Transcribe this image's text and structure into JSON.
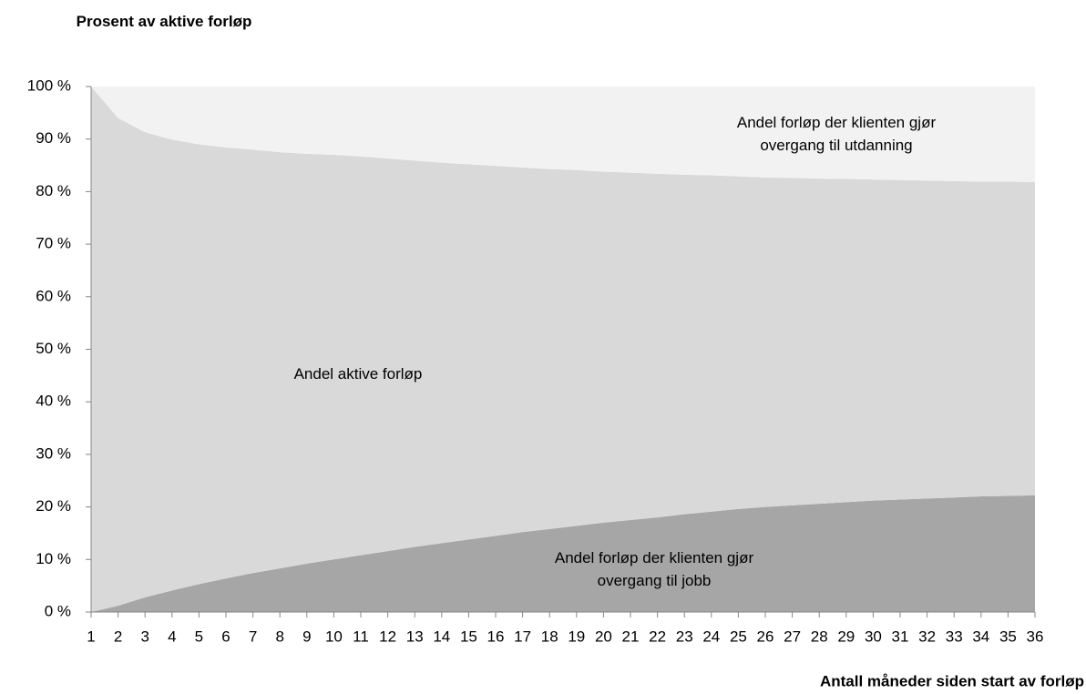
{
  "chart_data": {
    "type": "stacked_area",
    "y_title": "Prosent av aktive forløp",
    "x_title": "Antall måneder siden start av forløp",
    "categories": [
      1,
      2,
      3,
      4,
      5,
      6,
      7,
      8,
      9,
      10,
      11,
      12,
      13,
      14,
      15,
      16,
      17,
      18,
      19,
      20,
      21,
      22,
      23,
      24,
      25,
      26,
      27,
      28,
      29,
      30,
      31,
      32,
      33,
      34,
      35,
      36
    ],
    "series": [
      {
        "name": "Andel forløp der klienten gjør overgang til jobb",
        "color": "#a6a6a6",
        "values": [
          0,
          1.2,
          2.8,
          4.1,
          5.3,
          6.4,
          7.4,
          8.3,
          9.2,
          10.0,
          10.8,
          11.6,
          12.4,
          13.1,
          13.8,
          14.5,
          15.2,
          15.8,
          16.4,
          17.0,
          17.5,
          18.0,
          18.6,
          19.1,
          19.6,
          20.0,
          20.3,
          20.6,
          20.9,
          21.2,
          21.4,
          21.6,
          21.8,
          22.0,
          22.1,
          22.2
        ]
      },
      {
        "name": "Andel aktive forløp",
        "color": "#d9d9d9",
        "values": [
          100,
          92.8,
          88.5,
          85.8,
          83.7,
          82.0,
          80.6,
          79.2,
          78.0,
          77.0,
          75.9,
          74.7,
          73.5,
          72.4,
          71.4,
          70.4,
          69.4,
          68.5,
          67.7,
          66.8,
          66.1,
          65.4,
          64.6,
          64.0,
          63.3,
          62.7,
          62.3,
          61.9,
          61.5,
          61.1,
          60.8,
          60.5,
          60.2,
          59.9,
          59.8,
          59.6
        ]
      },
      {
        "name": "Andel forløp der klienten gjør overgang til utdanning",
        "color": "#f2f2f2",
        "values": [
          0,
          6,
          8.7,
          10.1,
          11,
          11.6,
          12,
          12.5,
          12.8,
          13,
          13.3,
          13.7,
          14.1,
          14.5,
          14.8,
          15.1,
          15.4,
          15.7,
          15.9,
          16.2,
          16.4,
          16.6,
          16.8,
          16.9,
          17.1,
          17.3,
          17.4,
          17.5,
          17.6,
          17.7,
          17.8,
          17.9,
          18,
          18.1,
          18.1,
          18.2
        ]
      }
    ],
    "ylim": [
      0,
      100
    ],
    "yticks": [
      {
        "value": 0,
        "label": "0 %"
      },
      {
        "value": 10,
        "label": "10 %"
      },
      {
        "value": 20,
        "label": "20 %"
      },
      {
        "value": 30,
        "label": "30 %"
      },
      {
        "value": 40,
        "label": "40 %"
      },
      {
        "value": 50,
        "label": "50 %"
      },
      {
        "value": 60,
        "label": "60 %"
      },
      {
        "value": 70,
        "label": "70 %"
      },
      {
        "value": 80,
        "label": "80 %"
      },
      {
        "value": 90,
        "label": "90 %"
      },
      {
        "value": 100,
        "label": "100 %"
      }
    ],
    "grid": false
  }
}
